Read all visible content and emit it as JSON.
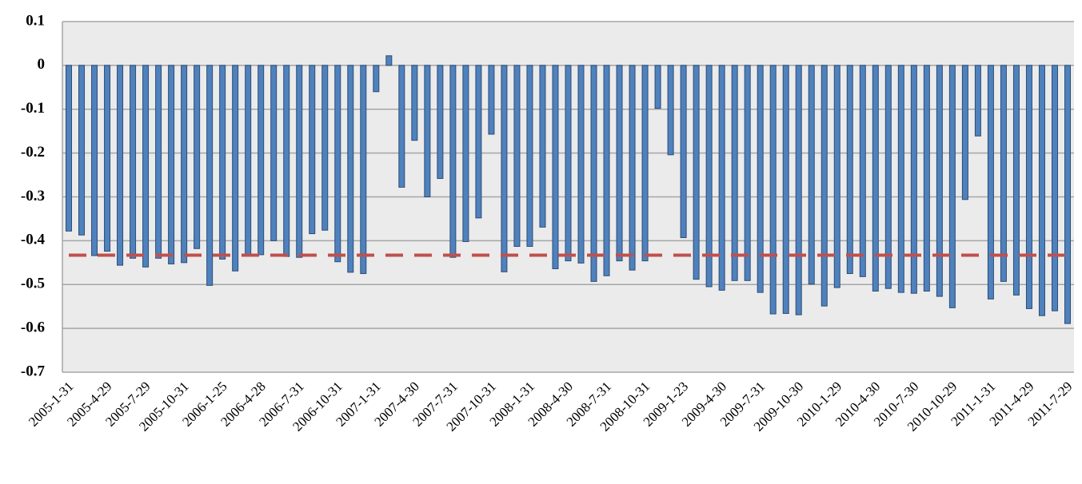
{
  "chart_data": {
    "type": "bar",
    "categories": [
      "2005-1-31",
      null,
      null,
      "2005-4-29",
      null,
      null,
      "2005-7-29",
      null,
      null,
      "2005-10-31",
      null,
      null,
      "2006-1-25",
      null,
      null,
      "2006-4-28",
      null,
      null,
      "2006-7-31",
      null,
      null,
      "2006-10-31",
      null,
      null,
      "2007-1-31",
      null,
      null,
      "2007-4-30",
      null,
      null,
      "2007-7-31",
      null,
      null,
      "2007-10-31",
      null,
      null,
      "2008-1-31",
      null,
      null,
      "2008-4-30",
      null,
      null,
      "2008-7-31",
      null,
      null,
      "2008-10-31",
      null,
      null,
      "2009-1-23",
      null,
      null,
      "2009-4-30",
      null,
      null,
      "2009-7-31",
      null,
      null,
      "2009-10-30",
      null,
      null,
      "2010-1-29",
      null,
      null,
      "2010-4-30",
      null,
      null,
      "2010-7-30",
      null,
      null,
      "2010-10-29",
      null,
      null,
      "2011-1-31",
      null,
      null,
      "2011-4-29",
      null,
      null,
      "2011-7-29"
    ],
    "values": [
      -0.378,
      -0.387,
      -0.434,
      -0.424,
      -0.456,
      -0.44,
      -0.46,
      -0.44,
      -0.453,
      -0.45,
      -0.418,
      -0.502,
      -0.442,
      -0.469,
      -0.433,
      -0.432,
      -0.4,
      -0.436,
      -0.438,
      -0.384,
      -0.376,
      -0.448,
      -0.472,
      -0.475,
      -0.06,
      0.022,
      -0.278,
      -0.171,
      -0.3,
      -0.258,
      -0.438,
      -0.402,
      -0.348,
      -0.157,
      -0.471,
      -0.413,
      -0.413,
      -0.369,
      -0.464,
      -0.446,
      -0.451,
      -0.493,
      -0.48,
      -0.446,
      -0.467,
      -0.446,
      -0.098,
      -0.204,
      -0.393,
      -0.488,
      -0.505,
      -0.513,
      -0.491,
      -0.491,
      -0.518,
      -0.567,
      -0.566,
      -0.569,
      -0.499,
      -0.549,
      -0.507,
      -0.475,
      -0.482,
      -0.515,
      -0.509,
      -0.518,
      -0.52,
      -0.515,
      -0.527,
      -0.553,
      -0.306,
      -0.161,
      -0.533,
      -0.493,
      -0.524,
      -0.555,
      -0.571,
      -0.56,
      -0.589
    ],
    "color": "#4f81bd",
    "reference_line": {
      "value": -0.433,
      "color": "#c0504d"
    },
    "ylim": [
      -0.7,
      0.1
    ],
    "yticks": [
      0.1,
      0,
      -0.1,
      -0.2,
      -0.3,
      -0.4,
      -0.5,
      -0.6,
      -0.7
    ],
    "grid": true
  }
}
